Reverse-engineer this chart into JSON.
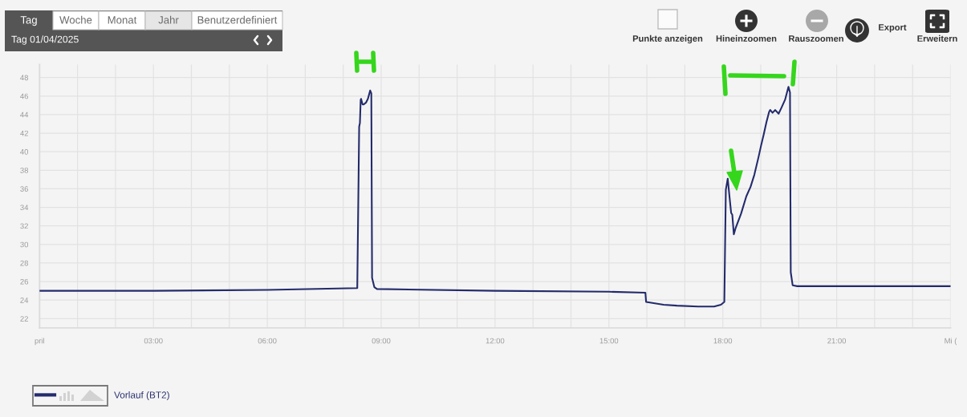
{
  "chart_data": {
    "type": "line",
    "x": [
      0,
      3,
      6,
      8.37,
      8.42,
      8.44,
      8.46,
      8.47,
      8.51,
      8.54,
      8.6,
      8.65,
      8.71,
      8.74,
      8.76,
      8.82,
      8.89,
      12,
      15,
      15.96,
      15.98,
      16.44,
      16.79,
      17.35,
      17.77,
      17.95,
      18.04,
      18.08,
      18.13,
      18.18,
      18.22,
      18.25,
      18.29,
      18.34,
      18.48,
      18.62,
      18.73,
      18.83,
      18.94,
      19.01,
      19.08,
      19.15,
      19.22,
      19.25,
      19.31,
      19.38,
      19.47,
      19.54,
      19.64,
      19.73,
      19.77,
      19.79,
      19.84,
      19.96,
      24
    ],
    "series": [
      {
        "name": "Vorlauf (BT2)",
        "color": "#232b6c",
        "values": [
          25.0,
          25.0,
          25.1,
          25.3,
          42.7,
          43.1,
          45.6,
          45.7,
          45.1,
          45.1,
          45.3,
          45.7,
          46.6,
          46.3,
          26.4,
          25.4,
          25.2,
          25.0,
          24.9,
          24.8,
          23.8,
          23.5,
          23.4,
          23.3,
          23.3,
          23.5,
          23.8,
          35.9,
          37.1,
          35.0,
          33.4,
          33.2,
          31.1,
          31.8,
          33.3,
          35.2,
          36.2,
          37.5,
          39.4,
          40.7,
          41.9,
          43.2,
          44.3,
          44.5,
          44.2,
          44.5,
          44.1,
          44.7,
          45.6,
          47.0,
          46.4,
          27.0,
          25.6,
          25.5,
          25.5
        ]
      }
    ],
    "xlim": [
      0,
      24
    ],
    "ylim": [
      21,
      49.4
    ],
    "xticks": [
      {
        "value": 0,
        "label": "pril"
      },
      {
        "value": 1,
        "label": null
      },
      {
        "value": 2,
        "label": null
      },
      {
        "value": 3,
        "label": "03:00"
      },
      {
        "value": 4,
        "label": null
      },
      {
        "value": 5,
        "label": null
      },
      {
        "value": 6,
        "label": "06:00"
      },
      {
        "value": 7,
        "label": null
      },
      {
        "value": 8,
        "label": null
      },
      {
        "value": 9,
        "label": "09:00"
      },
      {
        "value": 10,
        "label": null
      },
      {
        "value": 11,
        "label": null
      },
      {
        "value": 12,
        "label": "12:00"
      },
      {
        "value": 13,
        "label": null
      },
      {
        "value": 14,
        "label": null
      },
      {
        "value": 15,
        "label": "15:00"
      },
      {
        "value": 16,
        "label": null
      },
      {
        "value": 17,
        "label": null
      },
      {
        "value": 18,
        "label": "18:00"
      },
      {
        "value": 19,
        "label": null
      },
      {
        "value": 20,
        "label": null
      },
      {
        "value": 21,
        "label": "21:00"
      },
      {
        "value": 22,
        "label": null
      },
      {
        "value": 23,
        "label": null
      },
      {
        "value": 24,
        "label": "Mi ("
      }
    ],
    "yticks": [
      22,
      24,
      26,
      28,
      30,
      32,
      34,
      36,
      38,
      40,
      42,
      44,
      46,
      48
    ],
    "grid": true,
    "legend": "bottom left",
    "line_style": "solid",
    "annotations": [
      "Tag",
      "Woche",
      "Monat",
      "Jahr",
      "Benutzerdefiniert",
      "Tag 01/04/2025",
      "Punkte anzeigen",
      "Hineinzoomen",
      "Rauszoomen",
      "Export",
      "Erweitern"
    ]
  }
}
